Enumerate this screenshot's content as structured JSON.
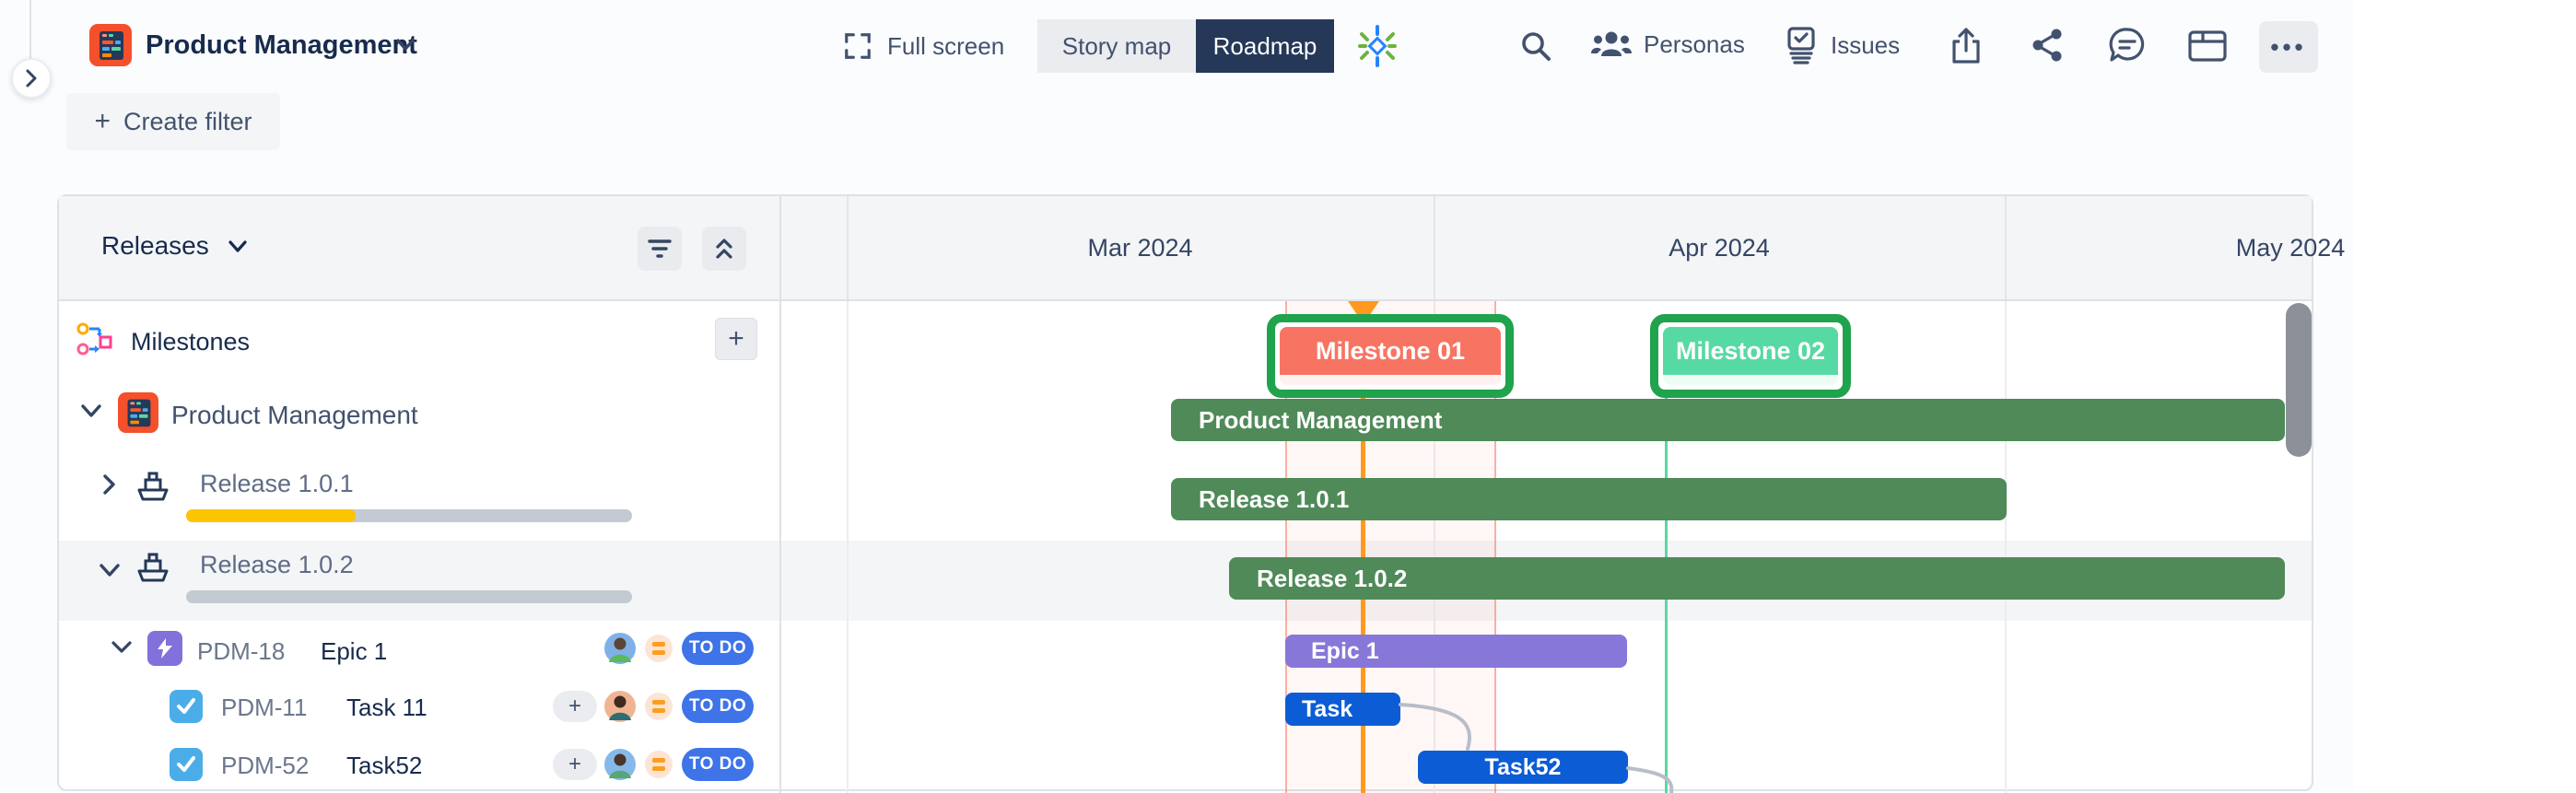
{
  "top_bar": {
    "title": "Product Management",
    "full_screen_label": "Full screen",
    "story_map_label": "Story map",
    "roadmap_label": "Roadmap",
    "personas_label": "Personas",
    "issues_label": "Issues",
    "more_label": "•••"
  },
  "toolbar": {
    "create_filter_label": "Create filter",
    "plus_glyph": "+"
  },
  "left_panel": {
    "view_selector_label": "Releases",
    "milestones_label": "Milestones",
    "project_name": "Product Management",
    "releases": [
      {
        "name": "Release 1.0.1",
        "progress_percent": 38
      },
      {
        "name": "Release 1.0.2",
        "progress_percent": 0
      }
    ],
    "issues": [
      {
        "key": "PDM-18",
        "title": "Epic 1",
        "type": "epic",
        "status": "TO DO"
      },
      {
        "key": "PDM-11",
        "title": "Task 11",
        "type": "task",
        "status": "TO DO"
      },
      {
        "key": "PDM-52",
        "title": "Task52",
        "type": "task",
        "status": "TO DO"
      }
    ]
  },
  "timeline": {
    "months": [
      "Mar 2024",
      "Apr 2024",
      "May 2024"
    ],
    "milestones": [
      {
        "label": "Milestone 01",
        "color": "#F87462"
      },
      {
        "label": "Milestone 02",
        "color": "#57D9A3"
      }
    ],
    "bars": [
      {
        "label": "Product Management",
        "color": "#4F8A58"
      },
      {
        "label": "Release 1.0.1",
        "color": "#4F8A58"
      },
      {
        "label": "Release 1.0.2",
        "color": "#4F8A58"
      },
      {
        "label": "Epic 1",
        "color": "#8777D9"
      },
      {
        "label": "Task",
        "color": "#0C5CD6"
      },
      {
        "label": "Task52",
        "color": "#0C5CD6"
      }
    ]
  },
  "icons": {
    "glyphs": {
      "plus": "+",
      "more": "•••"
    }
  },
  "colors": {
    "bar_green": "#4F8A58",
    "epic_purple": "#8777D9",
    "task_blue": "#0C5CD6",
    "milestone_outline": "#1FA34C",
    "marker_orange": "#FF991F",
    "progress_yellow": "#FFC400",
    "todo_blue": "#3E74E8",
    "selected_row_bg": "#F4F5F7",
    "roadmap_active_bg": "#253858"
  }
}
